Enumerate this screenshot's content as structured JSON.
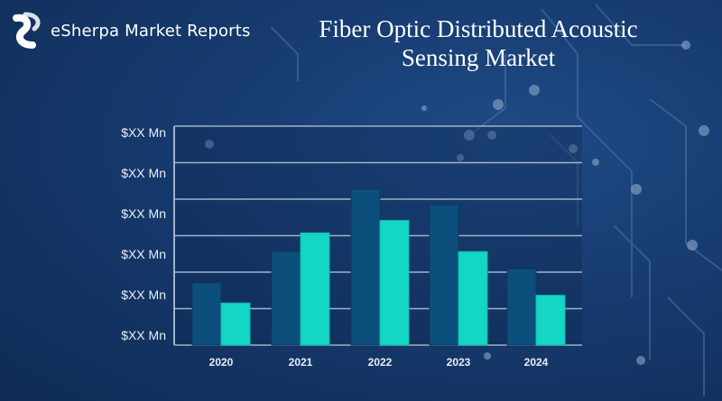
{
  "brand": {
    "name": "eSherpa Market Reports",
    "logo_icon": "esherpa-logo-icon"
  },
  "colors": {
    "background": "#163a6e",
    "series_dark": "#0d4f7c",
    "series_light": "#13d6c4",
    "grid": "#9fb3c8",
    "axis_text": "#e8eef5"
  },
  "chart_data": {
    "type": "bar",
    "title": "Fiber Optic Distributed Acoustic Sensing Market",
    "categories": [
      "2020",
      "2021",
      "2022",
      "2023",
      "2024"
    ],
    "y_tick_labels": [
      "$XX Mn",
      "$XX Mn",
      "$XX Mn",
      "$XX Mn",
      "$XX Mn",
      "$XX Mn"
    ],
    "ylim": [
      0,
      100
    ],
    "series": [
      {
        "color": "#0d4f7c",
        "values": [
          40,
          60,
          100,
          90,
          49
        ]
      },
      {
        "color": "#13d6c4",
        "values": [
          27,
          72,
          80,
          60,
          32
        ]
      }
    ],
    "grid": true,
    "legend": "none"
  }
}
